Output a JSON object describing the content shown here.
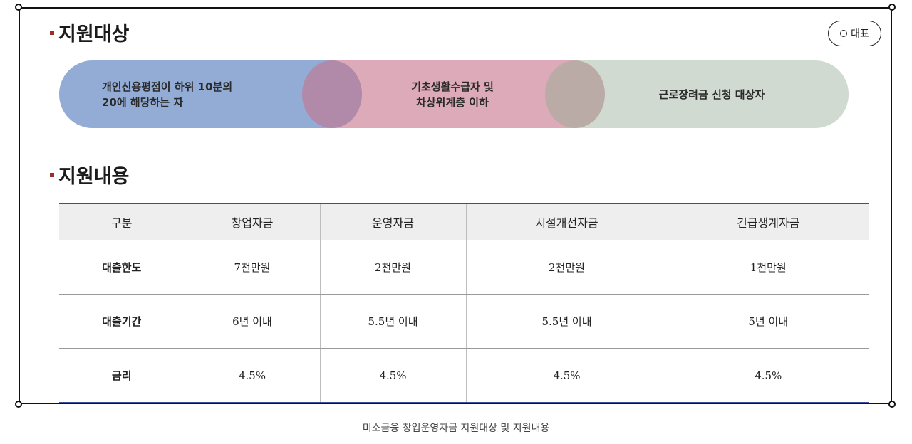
{
  "sections": {
    "target_title": "지원대상",
    "content_title": "지원내용"
  },
  "rep_button": {
    "label": "대표"
  },
  "target_pills": [
    {
      "text": "개인신용평점이 하위 10분의\n 20에 해당하는 자"
    },
    {
      "text": "기초생활수급자 및\n차상위계층 이하"
    },
    {
      "text": "근로장려금 신청 대상자"
    }
  ],
  "table": {
    "headers": [
      "구분",
      "창업자금",
      "운영자금",
      "시설개선자금",
      "긴급생계자금"
    ],
    "rows": [
      [
        "대출한도",
        "7천만원",
        "2천만원",
        "2천만원",
        "1천만원"
      ],
      [
        "대출기간",
        "6년 이내",
        "5.5년 이내",
        "5.5년 이내",
        "5년 이내"
      ],
      [
        "금리",
        "4.5%",
        "4.5%",
        "4.5%",
        "4.5%"
      ]
    ]
  },
  "caption": "미소금융 창업운영자금 지원대상 및 지원내용",
  "colors": {
    "bullet": "#a32a2a",
    "pill_blue": "#93acd6",
    "pill_pink": "#dcaab8",
    "pill_green": "#d0dad0",
    "table_rule": "#3d4e96"
  }
}
